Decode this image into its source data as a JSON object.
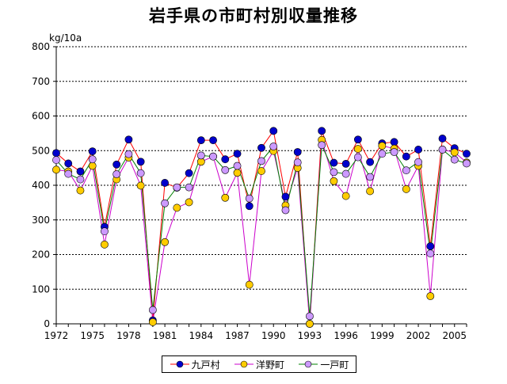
{
  "chart_data": {
    "type": "line",
    "title": "岩手県の市町村別収量推移",
    "ylabel": "kg/10a",
    "xlabel": "",
    "ylim": [
      0,
      800
    ],
    "yticks": [
      0,
      100,
      200,
      300,
      400,
      500,
      600,
      700,
      800
    ],
    "xlim": [
      1972,
      2006
    ],
    "xticks": [
      1972,
      1975,
      1978,
      1981,
      1984,
      1987,
      1990,
      1993,
      1996,
      1999,
      2002,
      2005
    ],
    "grid": "horizontal-dotted",
    "legend_position": "bottom",
    "x": [
      1972,
      1973,
      1974,
      1975,
      1976,
      1977,
      1978,
      1979,
      1980,
      1981,
      1982,
      1983,
      1984,
      1985,
      1986,
      1987,
      1988,
      1989,
      1990,
      1991,
      1992,
      1993,
      1994,
      1995,
      1996,
      1997,
      1998,
      1999,
      2000,
      2001,
      2002,
      2003,
      2004,
      2005,
      2006
    ],
    "series": [
      {
        "name": "九戸村",
        "line_color": "#ff0000",
        "marker_color": "#0000cc",
        "values": [
          493,
          463,
          440,
          498,
          280,
          460,
          532,
          468,
          10,
          407,
          393,
          435,
          530,
          530,
          475,
          491,
          340,
          508,
          557,
          367,
          496,
          0,
          557,
          465,
          462,
          532,
          467,
          521,
          525,
          483,
          503,
          224,
          535,
          507,
          491
        ]
      },
      {
        "name": "洋野町",
        "line_color": "#cc00cc",
        "marker_color": "#ffcc00",
        "values": [
          445,
          440,
          385,
          456,
          229,
          417,
          480,
          399,
          5,
          236,
          335,
          351,
          468,
          483,
          364,
          436,
          113,
          441,
          499,
          342,
          450,
          0,
          531,
          412,
          369,
          505,
          383,
          514,
          506,
          389,
          456,
          80,
          503,
          495,
          466
        ]
      },
      {
        "name": "一戸町",
        "line_color": "#008000",
        "marker_color": "#cc99ff",
        "values": [
          473,
          433,
          417,
          475,
          267,
          432,
          490,
          435,
          40,
          348,
          394,
          394,
          486,
          483,
          444,
          456,
          362,
          470,
          512,
          328,
          466,
          22,
          516,
          438,
          433,
          481,
          424,
          491,
          496,
          443,
          467,
          203,
          503,
          474,
          463
        ]
      }
    ]
  }
}
